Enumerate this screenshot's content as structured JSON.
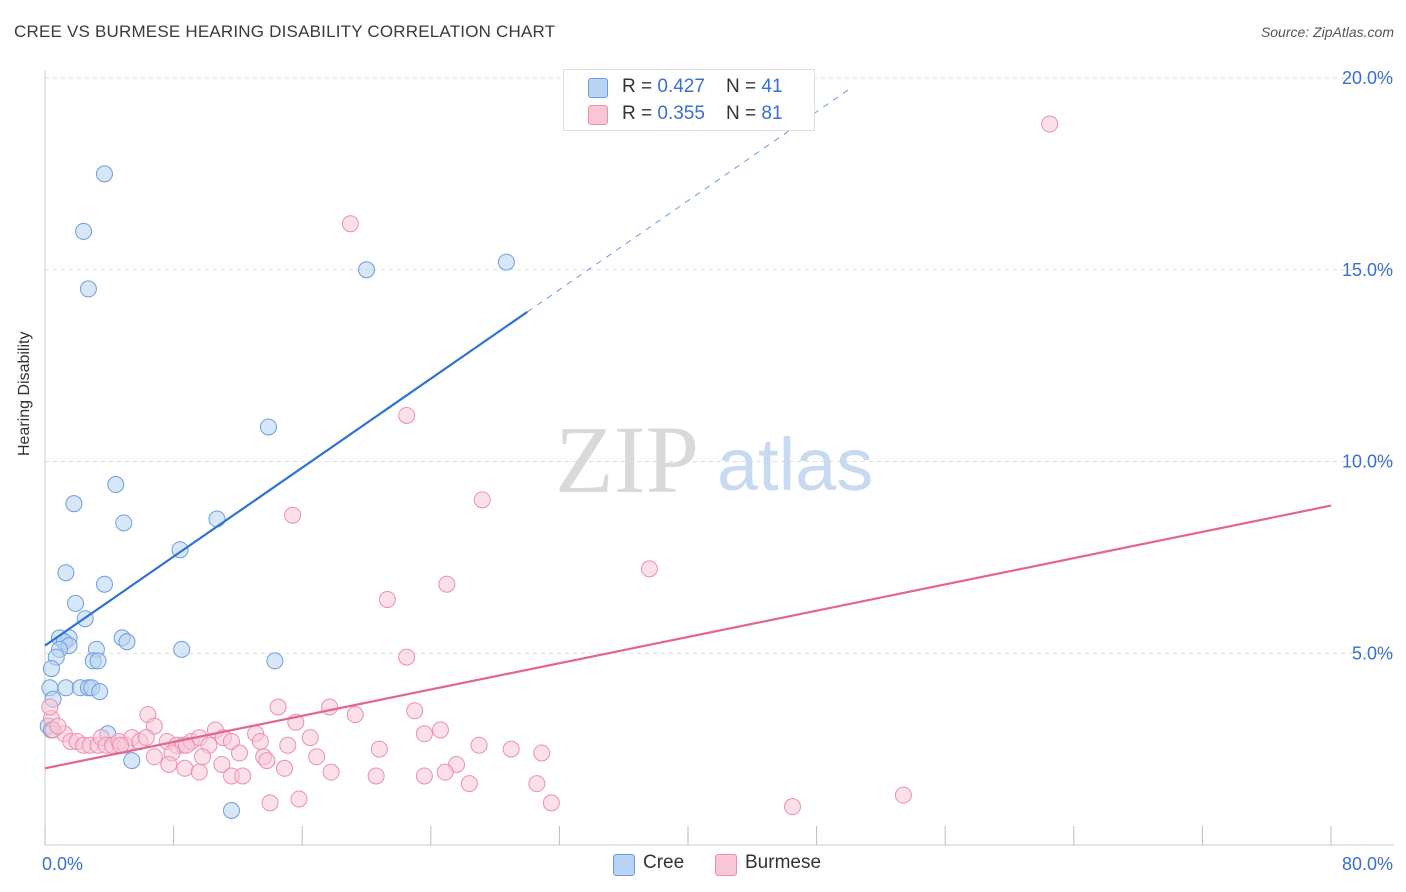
{
  "header": {
    "title": "CREE VS BURMESE HEARING DISABILITY CORRELATION CHART",
    "source": "Source: ZipAtlas.com"
  },
  "legend": {
    "rows": [
      {
        "r_label": "R = ",
        "r_value": "0.427",
        "n_label": "N = ",
        "n_value": "41"
      },
      {
        "r_label": "R = ",
        "r_value": "0.355",
        "n_label": "N = ",
        "n_value": "81"
      }
    ]
  },
  "watermark": {
    "zip": "ZIP",
    "atlas": "atlas"
  },
  "colors": {
    "cree_fill": "#b8d3f3",
    "cree_stroke": "#6b9de0",
    "cree_line": "#2e72d2",
    "burmese_fill": "#f9c6d6",
    "burmese_stroke": "#ec8fae",
    "burmese_line": "#e3648f",
    "tick_label": "#3a6fd0",
    "grid": "#dddddd"
  },
  "chart_data": {
    "type": "scatter",
    "title": "CREE VS BURMESE HEARING DISABILITY CORRELATION CHART",
    "xlabel": "",
    "ylabel": "Hearing Disability",
    "xlim": [
      0,
      80
    ],
    "ylim": [
      0,
      20.5
    ],
    "x_tick_labels": [
      "0.0%",
      "80.0%"
    ],
    "y_ticks": [
      5,
      10,
      15,
      20
    ],
    "y_tick_labels": [
      "5.0%",
      "10.0%",
      "15.0%",
      "20.0%"
    ],
    "grid": true,
    "legend_position": "bottom-center",
    "series": [
      {
        "name": "Cree",
        "r": 0.427,
        "n": 41,
        "trend": {
          "x0": 0,
          "y0": 5.2,
          "x1": 30,
          "y1": 13.9,
          "dashed_to_x": 50
        },
        "points": [
          [
            3.7,
            17.5
          ],
          [
            2.4,
            16.0
          ],
          [
            2.7,
            14.5
          ],
          [
            20.0,
            15.0
          ],
          [
            28.7,
            15.2
          ],
          [
            13.9,
            10.9
          ],
          [
            4.4,
            9.4
          ],
          [
            1.8,
            8.9
          ],
          [
            4.9,
            8.4
          ],
          [
            10.7,
            8.5
          ],
          [
            8.4,
            7.7
          ],
          [
            1.3,
            7.1
          ],
          [
            3.7,
            6.8
          ],
          [
            1.9,
            6.3
          ],
          [
            2.5,
            5.9
          ],
          [
            0.9,
            5.4
          ],
          [
            1.5,
            5.4
          ],
          [
            1.2,
            5.3
          ],
          [
            1.5,
            5.2
          ],
          [
            4.8,
            5.4
          ],
          [
            5.1,
            5.3
          ],
          [
            0.9,
            5.1
          ],
          [
            3.2,
            5.1
          ],
          [
            8.5,
            5.1
          ],
          [
            0.7,
            4.9
          ],
          [
            3.0,
            4.8
          ],
          [
            3.3,
            4.8
          ],
          [
            14.3,
            4.8
          ],
          [
            0.4,
            4.6
          ],
          [
            0.3,
            4.1
          ],
          [
            1.3,
            4.1
          ],
          [
            2.2,
            4.1
          ],
          [
            2.7,
            4.1
          ],
          [
            2.9,
            4.1
          ],
          [
            3.4,
            4.0
          ],
          [
            0.5,
            3.8
          ],
          [
            0.2,
            3.1
          ],
          [
            3.9,
            2.9
          ],
          [
            5.4,
            2.2
          ],
          [
            11.6,
            0.9
          ],
          [
            0.4,
            3.0
          ]
        ]
      },
      {
        "name": "Burmese",
        "r": 0.355,
        "n": 81,
        "trend": {
          "x0": 0,
          "y0": 2.0,
          "x1": 80,
          "y1": 8.85
        },
        "points": [
          [
            62.5,
            18.8
          ],
          [
            19.0,
            16.2
          ],
          [
            22.5,
            11.2
          ],
          [
            27.2,
            9.0
          ],
          [
            15.4,
            8.6
          ],
          [
            37.6,
            7.2
          ],
          [
            25.0,
            6.8
          ],
          [
            21.3,
            6.4
          ],
          [
            22.5,
            4.9
          ],
          [
            14.5,
            3.6
          ],
          [
            17.7,
            3.6
          ],
          [
            23.0,
            3.5
          ],
          [
            19.3,
            3.4
          ],
          [
            6.4,
            3.4
          ],
          [
            15.6,
            3.2
          ],
          [
            6.8,
            3.1
          ],
          [
            10.6,
            3.0
          ],
          [
            24.6,
            3.0
          ],
          [
            13.1,
            2.9
          ],
          [
            23.6,
            2.9
          ],
          [
            1.2,
            2.9
          ],
          [
            0.4,
            3.3
          ],
          [
            0.3,
            3.6
          ],
          [
            0.5,
            3.0
          ],
          [
            0.8,
            3.1
          ],
          [
            1.6,
            2.7
          ],
          [
            2.0,
            2.7
          ],
          [
            2.4,
            2.6
          ],
          [
            2.8,
            2.6
          ],
          [
            3.3,
            2.6
          ],
          [
            3.5,
            2.8
          ],
          [
            3.8,
            2.6
          ],
          [
            4.2,
            2.6
          ],
          [
            4.6,
            2.7
          ],
          [
            5.0,
            2.6
          ],
          [
            5.4,
            2.8
          ],
          [
            5.9,
            2.7
          ],
          [
            6.3,
            2.8
          ],
          [
            7.6,
            2.7
          ],
          [
            8.2,
            2.6
          ],
          [
            8.6,
            2.6
          ],
          [
            9.1,
            2.7
          ],
          [
            9.6,
            2.8
          ],
          [
            10.2,
            2.6
          ],
          [
            11.1,
            2.8
          ],
          [
            11.6,
            2.7
          ],
          [
            13.4,
            2.7
          ],
          [
            15.1,
            2.6
          ],
          [
            16.5,
            2.8
          ],
          [
            27.0,
            2.6
          ],
          [
            20.8,
            2.5
          ],
          [
            29.0,
            2.5
          ],
          [
            30.9,
            2.4
          ],
          [
            6.8,
            2.3
          ],
          [
            7.9,
            2.4
          ],
          [
            9.8,
            2.3
          ],
          [
            12.1,
            2.4
          ],
          [
            13.6,
            2.3
          ],
          [
            16.9,
            2.3
          ],
          [
            7.7,
            2.1
          ],
          [
            8.7,
            2.0
          ],
          [
            9.6,
            1.9
          ],
          [
            11.0,
            2.1
          ],
          [
            13.8,
            2.2
          ],
          [
            14.9,
            2.0
          ],
          [
            17.8,
            1.9
          ],
          [
            25.6,
            2.1
          ],
          [
            24.9,
            1.9
          ],
          [
            11.6,
            1.8
          ],
          [
            12.3,
            1.8
          ],
          [
            20.6,
            1.8
          ],
          [
            23.6,
            1.8
          ],
          [
            26.4,
            1.6
          ],
          [
            30.6,
            1.6
          ],
          [
            14.0,
            1.1
          ],
          [
            15.8,
            1.2
          ],
          [
            31.5,
            1.1
          ],
          [
            46.5,
            1.0
          ],
          [
            53.4,
            1.3
          ],
          [
            8.8,
            2.6
          ],
          [
            4.7,
            2.6
          ]
        ]
      }
    ]
  }
}
